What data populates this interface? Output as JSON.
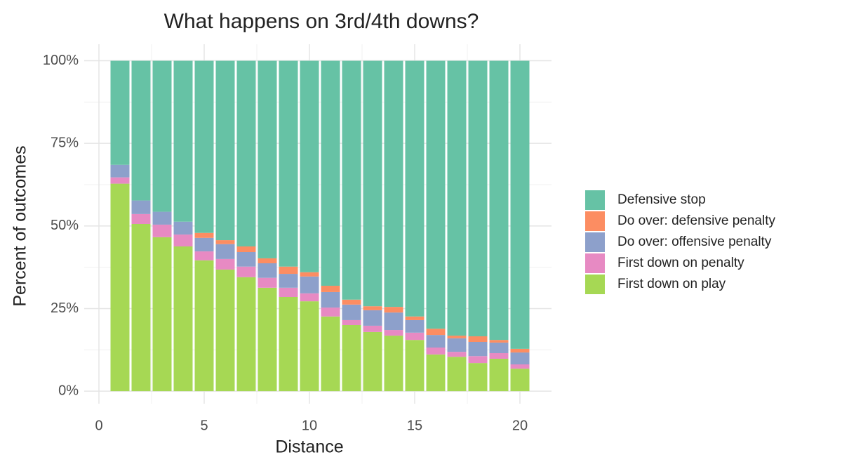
{
  "chart_data": {
    "type": "stacked_bar",
    "title": "What happens on 3rd/4th downs?",
    "x_label": "Distance",
    "y_label": "Percent of outcomes",
    "x": [
      1,
      2,
      3,
      4,
      5,
      6,
      7,
      8,
      9,
      10,
      11,
      12,
      13,
      14,
      15,
      16,
      17,
      18,
      19,
      20
    ],
    "series": [
      {
        "name": "Defensive stop",
        "color": "#66c2a5",
        "values": [
          31.5,
          42.3,
          45.7,
          48.7,
          52.1,
          54.3,
          56.2,
          59.8,
          62.3,
          64.0,
          68.1,
          72.3,
          74.3,
          74.5,
          77.4,
          81.1,
          83.2,
          83.4,
          84.5,
          87.2
        ]
      },
      {
        "name": "Do over: defensive penalty",
        "color": "#fc8d62",
        "values": [
          0,
          0,
          0,
          0,
          1.5,
          1.2,
          1.7,
          1.5,
          2.2,
          1.3,
          1.9,
          1.5,
          1.2,
          1.7,
          1.1,
          1.9,
          0.8,
          1.7,
          0.8,
          1.1
        ]
      },
      {
        "name": "Do over: offensive penalty",
        "color": "#8da0cb",
        "values": [
          3.8,
          4.1,
          3.9,
          3.9,
          4.1,
          4.5,
          4.4,
          4.4,
          4.2,
          5.1,
          4.7,
          4.7,
          4.7,
          5.3,
          3.8,
          3.8,
          4.1,
          4.3,
          3.2,
          3.6
        ]
      },
      {
        "name": "First down on penalty",
        "color": "#e78ac3",
        "values": [
          1.9,
          3.0,
          3.8,
          3.6,
          2.7,
          3.2,
          3.2,
          3.0,
          2.8,
          2.4,
          2.7,
          1.5,
          1.9,
          1.7,
          2.2,
          2.1,
          1.5,
          2.1,
          1.7,
          1.3
        ]
      },
      {
        "name": "First down on play",
        "color": "#a6d854",
        "values": [
          62.8,
          50.6,
          46.6,
          43.8,
          39.6,
          36.8,
          34.5,
          31.3,
          28.5,
          27.2,
          22.6,
          20.0,
          17.9,
          16.8,
          15.5,
          11.1,
          10.4,
          8.5,
          9.8,
          6.8
        ]
      }
    ],
    "bar_width": 0.9,
    "xlim": [
      -0.7,
      21.5
    ],
    "ylim": [
      -3.8,
      105
    ],
    "xticks": [
      0,
      5,
      10,
      15,
      20
    ],
    "yticks": [
      {
        "value": 0,
        "label": "0%"
      },
      {
        "value": 25,
        "label": "25%"
      },
      {
        "value": 50,
        "label": "50%"
      },
      {
        "value": 75,
        "label": "75%"
      },
      {
        "value": 100,
        "label": "100%"
      }
    ],
    "x_minor_grid": [
      2.5,
      7.5,
      12.5,
      17.5
    ],
    "y_minor_grid": [
      12.5,
      37.5,
      62.5,
      87.5
    ],
    "grid": true,
    "legend": "right"
  }
}
